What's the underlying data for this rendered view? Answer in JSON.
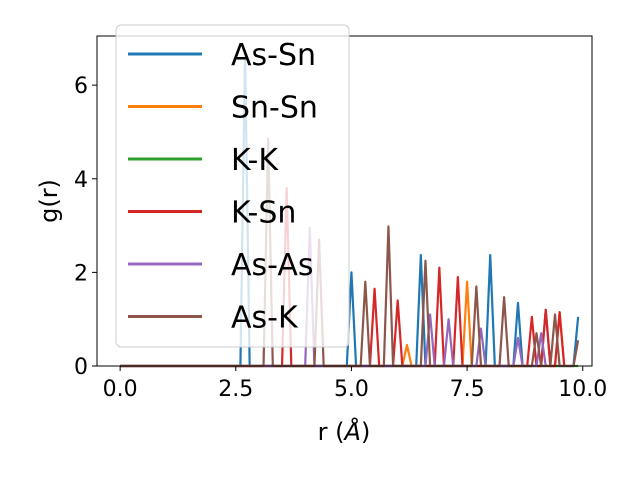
{
  "chart_data": {
    "type": "line",
    "xlabel_main": "r (",
    "xlabel_unit": "Å",
    "xlabel_end": ")",
    "ylabel": "g(r)",
    "xlim": [
      -0.5,
      10.2
    ],
    "ylim": [
      0,
      7.05
    ],
    "xticks": [
      0.0,
      2.5,
      5.0,
      7.5,
      10.0
    ],
    "xtick_labels": [
      "0.0",
      "2.5",
      "5.0",
      "7.5",
      "10.0"
    ],
    "yticks": [
      0,
      2,
      4,
      6
    ],
    "ytick_labels": [
      "0",
      "2",
      "4",
      "6"
    ],
    "grid": false,
    "legend_position": "upper-left",
    "series": [
      {
        "name": "As-Sn",
        "color": "#1f77b4",
        "points": [
          [
            0,
            0
          ],
          [
            2.6,
            0
          ],
          [
            2.7,
            6.7
          ],
          [
            2.8,
            0
          ],
          [
            4.9,
            0
          ],
          [
            5.0,
            2.0
          ],
          [
            5.1,
            0
          ],
          [
            6.4,
            0
          ],
          [
            6.5,
            2.37
          ],
          [
            6.6,
            0
          ],
          [
            7.9,
            0
          ],
          [
            8.0,
            2.37
          ],
          [
            8.1,
            0
          ],
          [
            8.5,
            0
          ],
          [
            8.6,
            1.35
          ],
          [
            8.7,
            0
          ],
          [
            9.1,
            0
          ],
          [
            9.2,
            1.2
          ],
          [
            9.3,
            0
          ],
          [
            9.8,
            0
          ],
          [
            9.9,
            1.05
          ]
        ]
      },
      {
        "name": "Sn-Sn",
        "color": "#ff7f0e",
        "points": [
          [
            0,
            0
          ],
          [
            6.1,
            0
          ],
          [
            6.2,
            0.45
          ],
          [
            6.3,
            0
          ],
          [
            7.4,
            0
          ],
          [
            7.5,
            1.8
          ],
          [
            7.6,
            0
          ],
          [
            9.4,
            0
          ],
          [
            9.5,
            1.15
          ],
          [
            9.6,
            0
          ]
        ]
      },
      {
        "name": "K-K",
        "color": "#2ca02c",
        "points": [
          [
            0,
            0
          ],
          [
            9.9,
            0
          ]
        ]
      },
      {
        "name": "K-Sn",
        "color": "#d62728",
        "points": [
          [
            0,
            0
          ],
          [
            3.5,
            0
          ],
          [
            3.6,
            3.8
          ],
          [
            3.7,
            0
          ],
          [
            5.4,
            0
          ],
          [
            5.5,
            1.65
          ],
          [
            5.6,
            0
          ],
          [
            5.9,
            0
          ],
          [
            6.0,
            1.4
          ],
          [
            6.1,
            0
          ],
          [
            6.8,
            0
          ],
          [
            6.9,
            2.1
          ],
          [
            7.0,
            0
          ],
          [
            7.2,
            0
          ],
          [
            7.3,
            1.9
          ],
          [
            7.4,
            0
          ],
          [
            8.8,
            0
          ],
          [
            8.9,
            1.05
          ],
          [
            9.0,
            0
          ],
          [
            9.1,
            0
          ],
          [
            9.2,
            1.2
          ],
          [
            9.3,
            0
          ],
          [
            9.4,
            0
          ],
          [
            9.5,
            1.15
          ],
          [
            9.6,
            0
          ]
        ]
      },
      {
        "name": "As-As",
        "color": "#9467bd",
        "points": [
          [
            0,
            0
          ],
          [
            4.0,
            0
          ],
          [
            4.1,
            2.95
          ],
          [
            4.2,
            0
          ],
          [
            6.6,
            0
          ],
          [
            6.7,
            1.1
          ],
          [
            6.8,
            0
          ],
          [
            7.0,
            0
          ],
          [
            7.1,
            1.0
          ],
          [
            7.2,
            0
          ],
          [
            7.7,
            0
          ],
          [
            7.8,
            0.8
          ],
          [
            7.9,
            0
          ],
          [
            8.5,
            0
          ],
          [
            8.6,
            0.6
          ],
          [
            8.7,
            0
          ],
          [
            9.0,
            0
          ],
          [
            9.1,
            0.7
          ],
          [
            9.2,
            0
          ]
        ]
      },
      {
        "name": "As-K",
        "color": "#8c564b",
        "points": [
          [
            0,
            0
          ],
          [
            3.1,
            0
          ],
          [
            3.2,
            4.85
          ],
          [
            3.3,
            0
          ],
          [
            4.2,
            0
          ],
          [
            4.3,
            2.7
          ],
          [
            4.4,
            0
          ],
          [
            5.2,
            0
          ],
          [
            5.3,
            1.8
          ],
          [
            5.4,
            0
          ],
          [
            5.7,
            0
          ],
          [
            5.8,
            2.98
          ],
          [
            5.9,
            0
          ],
          [
            6.5,
            0
          ],
          [
            6.6,
            2.25
          ],
          [
            6.7,
            0
          ],
          [
            7.6,
            0
          ],
          [
            7.7,
            1.7
          ],
          [
            7.8,
            0
          ],
          [
            8.2,
            0
          ],
          [
            8.3,
            1.47
          ],
          [
            8.4,
            0
          ],
          [
            8.9,
            0
          ],
          [
            9.0,
            0.7
          ],
          [
            9.1,
            0
          ],
          [
            9.3,
            0
          ],
          [
            9.4,
            1.1
          ],
          [
            9.5,
            0
          ],
          [
            9.8,
            0
          ],
          [
            9.9,
            0.55
          ]
        ]
      }
    ]
  }
}
